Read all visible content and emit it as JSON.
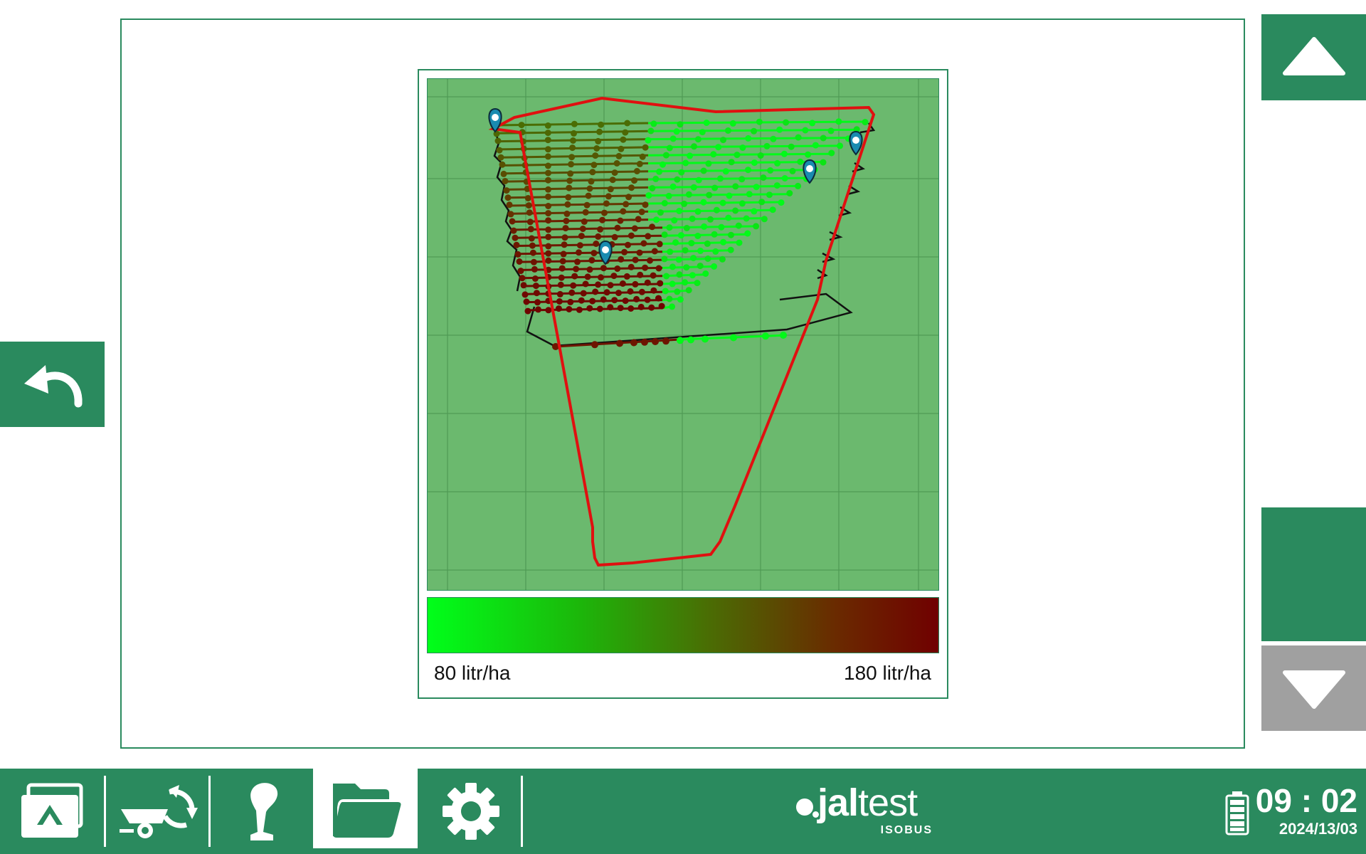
{
  "map": {
    "legend_min": "80 litr/ha",
    "legend_max": "180 litr/ha",
    "boundary_color": "#e01010",
    "low_color": "#00ff1a",
    "high_color": "#700000",
    "markers": 4
  },
  "nav": {
    "back": "back-icon",
    "up": "arrow-up-icon",
    "down": "arrow-down-icon"
  },
  "tabs": [
    {
      "name": "home",
      "icon": "screen-home-icon",
      "active": false
    },
    {
      "name": "implement",
      "icon": "implement-sync-icon",
      "active": false
    },
    {
      "name": "joystick",
      "icon": "joystick-icon",
      "active": false
    },
    {
      "name": "files",
      "icon": "folder-icon",
      "active": true
    },
    {
      "name": "settings",
      "icon": "gear-icon",
      "active": false
    }
  ],
  "logo": {
    "prefix": "jal",
    "suffix": "test",
    "sub": "ISOBUS"
  },
  "status": {
    "time": "09 : 02",
    "date": "2024/13/03"
  }
}
